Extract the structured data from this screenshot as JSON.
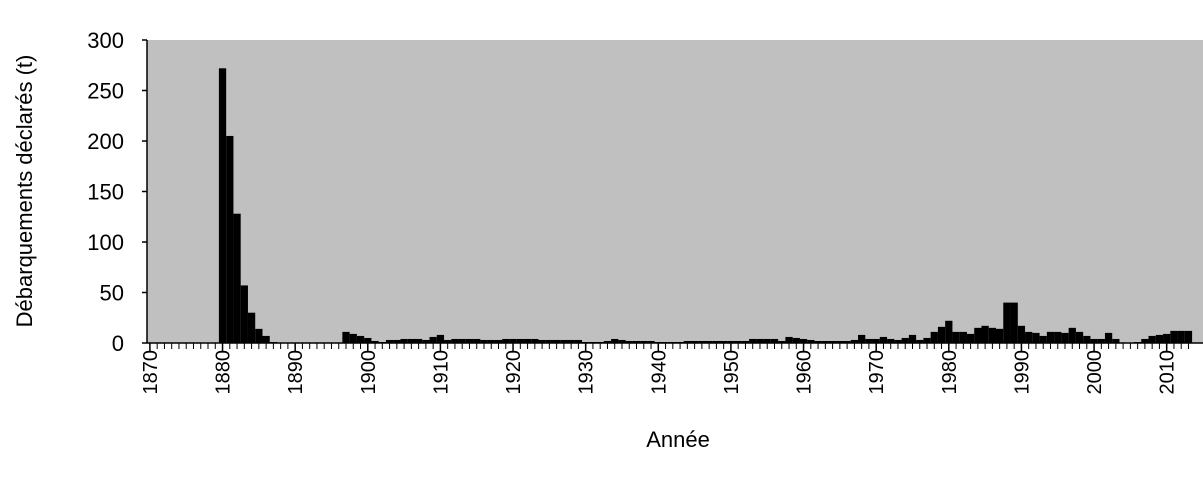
{
  "chart_data": {
    "type": "bar",
    "x_label": "Année",
    "y_label": "Débarquements déclarés (t)",
    "x": [
      1870,
      1871,
      1872,
      1873,
      1874,
      1875,
      1876,
      1877,
      1878,
      1879,
      1880,
      1881,
      1882,
      1883,
      1884,
      1885,
      1886,
      1887,
      1888,
      1889,
      1890,
      1891,
      1892,
      1893,
      1894,
      1895,
      1896,
      1897,
      1898,
      1899,
      1900,
      1901,
      1902,
      1903,
      1904,
      1905,
      1906,
      1907,
      1908,
      1909,
      1910,
      1911,
      1912,
      1913,
      1914,
      1915,
      1916,
      1917,
      1918,
      1919,
      1920,
      1921,
      1922,
      1923,
      1924,
      1925,
      1926,
      1927,
      1928,
      1929,
      1930,
      1931,
      1932,
      1933,
      1934,
      1935,
      1936,
      1937,
      1938,
      1939,
      1940,
      1941,
      1942,
      1943,
      1944,
      1945,
      1946,
      1947,
      1948,
      1949,
      1950,
      1951,
      1952,
      1953,
      1954,
      1955,
      1956,
      1957,
      1958,
      1959,
      1960,
      1961,
      1962,
      1963,
      1964,
      1965,
      1966,
      1967,
      1968,
      1969,
      1970,
      1971,
      1972,
      1973,
      1974,
      1975,
      1976,
      1977,
      1978,
      1979,
      1980,
      1981,
      1982,
      1983,
      1984,
      1985,
      1986,
      1987,
      1988,
      1989,
      1990,
      1991,
      1992,
      1993,
      1994,
      1995,
      1996,
      1997,
      1998,
      1999,
      2000,
      2001,
      2002,
      2003,
      2004,
      2005,
      2006,
      2007,
      2008,
      2009,
      2010,
      2011,
      2012,
      2013
    ],
    "values": [
      0,
      0,
      0,
      0,
      0,
      0,
      0,
      0,
      0,
      0,
      272,
      205,
      128,
      57,
      30,
      14,
      7,
      1,
      0,
      0,
      0,
      0,
      0,
      0,
      0,
      0,
      0,
      11,
      9,
      7,
      5,
      2,
      1,
      3,
      3,
      4,
      4,
      4,
      3,
      6,
      8,
      3,
      4,
      4,
      4,
      4,
      3,
      3,
      3,
      4,
      4,
      4,
      4,
      4,
      3,
      3,
      3,
      3,
      3,
      3,
      1,
      1,
      1,
      2,
      4,
      3,
      2,
      2,
      2,
      2,
      1,
      1,
      1,
      1,
      2,
      2,
      2,
      2,
      2,
      2,
      2,
      2,
      2,
      4,
      4,
      4,
      4,
      2,
      6,
      5,
      4,
      3,
      2,
      2,
      2,
      2,
      2,
      3,
      8,
      4,
      4,
      6,
      4,
      3,
      5,
      8,
      3,
      5,
      11,
      16,
      22,
      11,
      11,
      9,
      15,
      17,
      15,
      14,
      40,
      40,
      17,
      11,
      10,
      7,
      11,
      11,
      10,
      15,
      11,
      7,
      4,
      4,
      10,
      4,
      0,
      0,
      1,
      4,
      7,
      8,
      9,
      12,
      12,
      12
    ],
    "color": "#000000",
    "background": "#c0c0c0",
    "xlim": [
      1869.6,
      2015
    ],
    "xticks": [
      1870,
      1880,
      1890,
      1900,
      1910,
      1920,
      1930,
      1940,
      1950,
      1960,
      1970,
      1980,
      1990,
      2000,
      2010
    ],
    "ylim": [
      0,
      300
    ],
    "yticks": [
      0,
      50,
      100,
      150,
      200,
      250,
      300
    ],
    "grid": false
  }
}
